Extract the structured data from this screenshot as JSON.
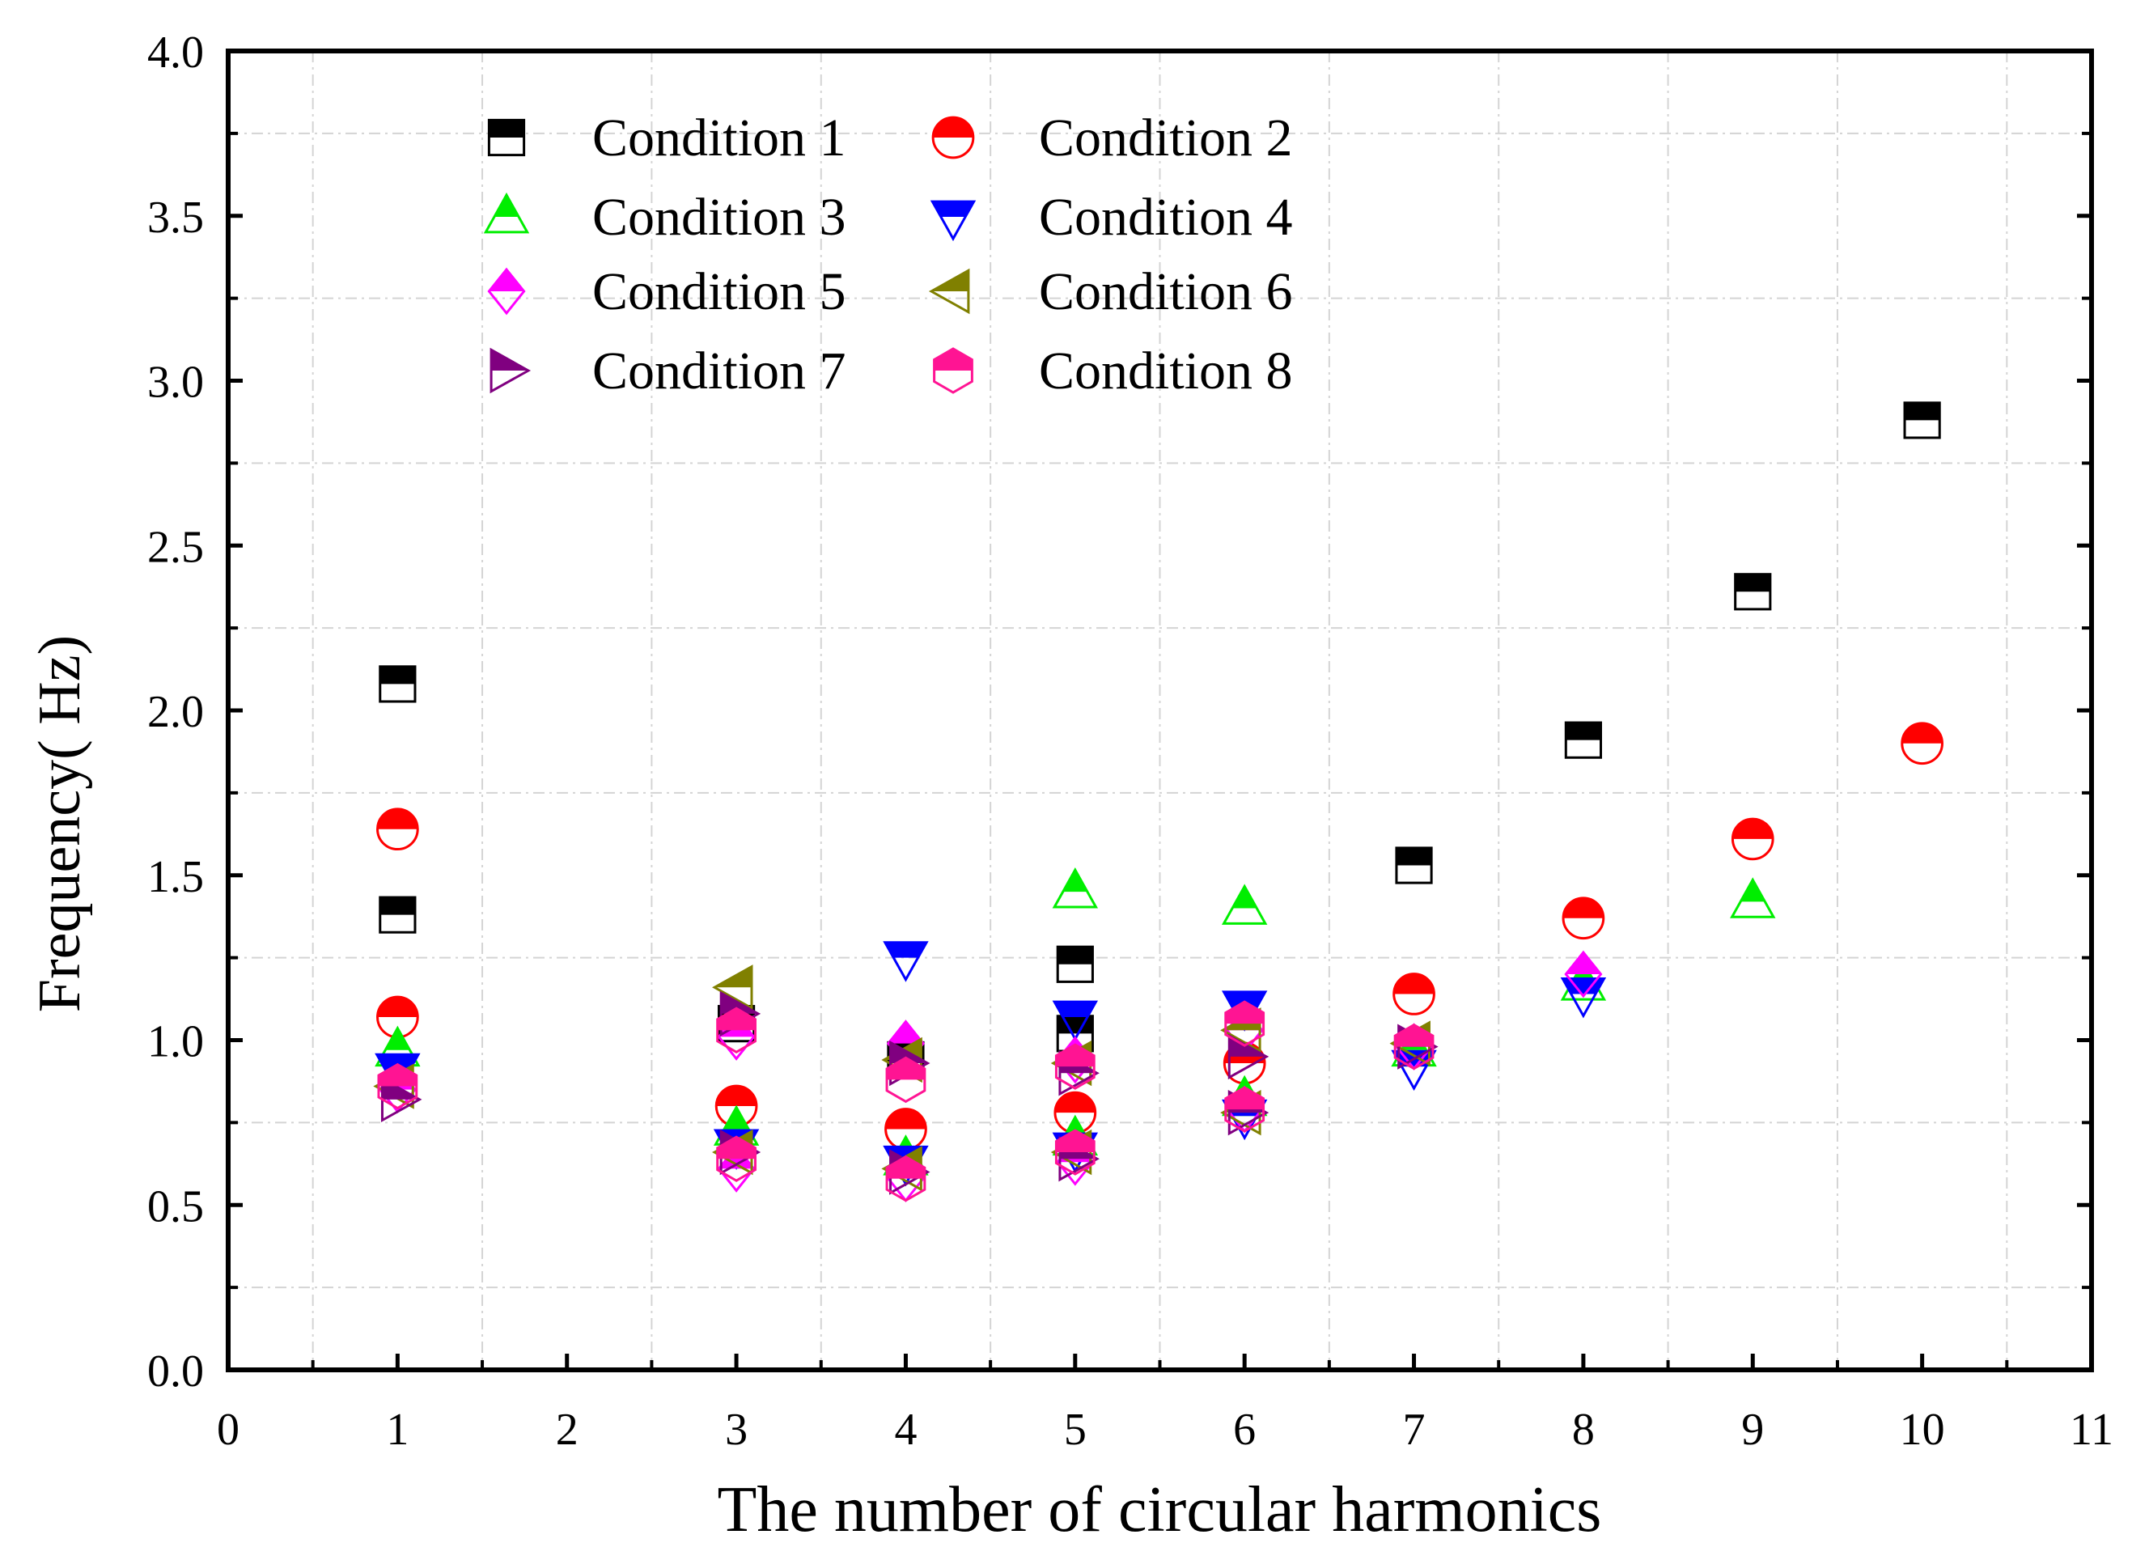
{
  "chart_data": {
    "type": "scatter",
    "title": "",
    "xlabel": "The number of circular harmonics",
    "ylabel": "Frequency(  Hz)",
    "xlim": [
      0,
      11
    ],
    "ylim": [
      0.0,
      4.0
    ],
    "x_ticks": [
      0,
      1,
      2,
      3,
      4,
      5,
      6,
      7,
      8,
      9,
      10,
      11
    ],
    "y_ticks": [
      0.0,
      0.5,
      1.0,
      1.5,
      2.0,
      2.5,
      3.0,
      3.5,
      4.0
    ],
    "x_tick_labels": [
      "0",
      "1",
      "2",
      "3",
      "4",
      "5",
      "6",
      "7",
      "8",
      "9",
      "10",
      "11"
    ],
    "y_tick_labels": [
      "0.0",
      "0.5",
      "1.0",
      "1.5",
      "2.0",
      "2.5",
      "3.0",
      "3.5",
      "4.0"
    ],
    "grid": true,
    "legend_position": "top-left",
    "series": [
      {
        "name": "Condition 1",
        "marker": "square",
        "color": "#000000",
        "points": [
          [
            1,
            2.08
          ],
          [
            1,
            1.38
          ],
          [
            3,
            1.05
          ],
          [
            4,
            0.94
          ],
          [
            5,
            1.23
          ],
          [
            5,
            1.02
          ],
          [
            7,
            1.53
          ],
          [
            8,
            1.91
          ],
          [
            9,
            2.36
          ],
          [
            10,
            2.88
          ]
        ]
      },
      {
        "name": "Condition 2",
        "marker": "circle",
        "color": "#ff0000",
        "points": [
          [
            1,
            1.64
          ],
          [
            1,
            1.07
          ],
          [
            3,
            0.8
          ],
          [
            4,
            0.73
          ],
          [
            5,
            0.78
          ],
          [
            6,
            0.93
          ],
          [
            7,
            1.14
          ],
          [
            8,
            1.37
          ],
          [
            9,
            1.61
          ],
          [
            10,
            1.9
          ]
        ]
      },
      {
        "name": "Condition 3",
        "marker": "triangle-up",
        "color": "#00ee00",
        "points": [
          [
            1,
            0.97
          ],
          [
            3,
            0.73
          ],
          [
            4,
            0.64
          ],
          [
            5,
            1.45
          ],
          [
            5,
            0.7
          ],
          [
            6,
            1.4
          ],
          [
            6,
            0.82
          ],
          [
            7,
            0.97
          ],
          [
            8,
            1.17
          ],
          [
            9,
            1.42
          ]
        ]
      },
      {
        "name": "Condition 4",
        "marker": "triangle-down",
        "color": "#0000ff",
        "points": [
          [
            1,
            0.91
          ],
          [
            3,
            0.68
          ],
          [
            4,
            1.25
          ],
          [
            4,
            0.63
          ],
          [
            5,
            1.07
          ],
          [
            5,
            0.67
          ],
          [
            6,
            1.1
          ],
          [
            6,
            0.77
          ],
          [
            7,
            0.92
          ],
          [
            8,
            1.14
          ]
        ]
      },
      {
        "name": "Condition 5",
        "marker": "diamond",
        "color": "#ff00ff",
        "points": [
          [
            1,
            0.85
          ],
          [
            3,
            1.01
          ],
          [
            3,
            0.61
          ],
          [
            4,
            0.99
          ],
          [
            4,
            0.58
          ],
          [
            5,
            0.94
          ],
          [
            5,
            0.63
          ],
          [
            6,
            1.03
          ],
          [
            6,
            0.79
          ],
          [
            7,
            0.98
          ],
          [
            8,
            1.2
          ]
        ]
      },
      {
        "name": "Condition 6",
        "marker": "triangle-left",
        "color": "#808000",
        "points": [
          [
            1,
            0.86
          ],
          [
            3,
            1.16
          ],
          [
            3,
            0.66
          ],
          [
            4,
            0.94
          ],
          [
            4,
            0.61
          ],
          [
            5,
            0.93
          ],
          [
            5,
            0.66
          ],
          [
            6,
            1.03
          ],
          [
            6,
            0.78
          ],
          [
            7,
            0.99
          ]
        ]
      },
      {
        "name": "Condition 7",
        "marker": "triangle-right",
        "color": "#800080",
        "points": [
          [
            1,
            0.82
          ],
          [
            3,
            1.08
          ],
          [
            3,
            0.66
          ],
          [
            4,
            0.93
          ],
          [
            4,
            0.6
          ],
          [
            5,
            0.9
          ],
          [
            5,
            0.64
          ],
          [
            6,
            0.95
          ],
          [
            6,
            0.78
          ],
          [
            7,
            0.98
          ]
        ]
      },
      {
        "name": "Condition 8",
        "marker": "hexagon",
        "color": "#ff1493",
        "points": [
          [
            1,
            0.86
          ],
          [
            3,
            1.03
          ],
          [
            3,
            0.64
          ],
          [
            4,
            0.88
          ],
          [
            4,
            0.58
          ],
          [
            5,
            0.92
          ],
          [
            5,
            0.66
          ],
          [
            6,
            1.05
          ],
          [
            6,
            0.79
          ],
          [
            7,
            0.98
          ]
        ]
      }
    ]
  }
}
